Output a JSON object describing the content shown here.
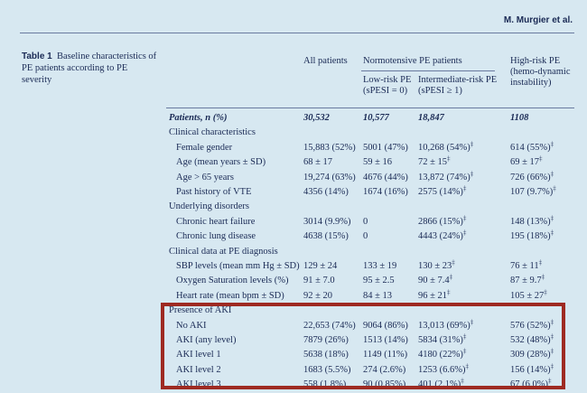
{
  "author": "M. Murgier et al.",
  "caption": {
    "label": "Table 1",
    "text": "Baseline characteristics of PE patients according to PE severity"
  },
  "headers": {
    "all": "All patients",
    "normotensive": "Normotensive PE patients",
    "low": "Low-risk PE (sPESI = 0)",
    "intermediate": "Intermediate-risk PE (sPESI ≥ 1)",
    "high": "High-risk PE (hemo-dynamic instability)"
  },
  "rows": [
    {
      "label": "Patients, n (%)",
      "all": "30,532",
      "low": "10,577",
      "int": "18,847",
      "high": "1108",
      "bold": true
    },
    {
      "label": "Clinical characteristics",
      "section": true
    },
    {
      "label": "Female gender",
      "all": "15,883 (52%)",
      "low": "5001 (47%)",
      "int": "10,268 (54%)",
      "int_sup": "‡",
      "high": "614 (55%)",
      "high_sup": "‡"
    },
    {
      "label": "Age (mean years ± SD)",
      "all": "68 ± 17",
      "low": "59 ± 16",
      "int": "72 ± 15",
      "int_sup": "‡",
      "high": "69 ± 17",
      "high_sup": "‡"
    },
    {
      "label": "Age > 65 years",
      "all": "19,274 (63%)",
      "low": "4676 (44%)",
      "int": "13,872 (74%)",
      "int_sup": "‡",
      "high": "726 (66%)",
      "high_sup": "‡"
    },
    {
      "label": "Past history of VTE",
      "all": "4356 (14%)",
      "low": "1674 (16%)",
      "int": "2575 (14%)",
      "int_sup": "‡",
      "high": "107 (9.7%)",
      "high_sup": "‡"
    },
    {
      "label": "Underlying disorders",
      "section": true
    },
    {
      "label": "Chronic heart failure",
      "all": "3014 (9.9%)",
      "low": "0",
      "int": "2866 (15%)",
      "int_sup": "‡",
      "high": "148 (13%)",
      "high_sup": "‡"
    },
    {
      "label": "Chronic lung disease",
      "all": "4638 (15%)",
      "low": "0",
      "int": "4443 (24%)",
      "int_sup": "‡",
      "high": "195 (18%)",
      "high_sup": "‡"
    },
    {
      "label": "Clinical data at PE diagnosis",
      "section": true
    },
    {
      "label": "SBP levels (mean mm Hg ± SD)",
      "all": "129 ± 24",
      "low": "133 ± 19",
      "int": "130 ± 23",
      "int_sup": "‡",
      "high": "76 ± 11",
      "high_sup": "‡"
    },
    {
      "label": "Oxygen Saturation levels (%)",
      "all": "91 ± 7.0",
      "low": "95 ± 2.5",
      "int": "90 ± 7.4",
      "int_sup": "‡",
      "high": "87 ± 9.7",
      "high_sup": "‡"
    },
    {
      "label": "Heart rate (mean bpm ± SD)",
      "all": "92 ± 20",
      "low": "84 ± 13",
      "int": "96 ± 21",
      "int_sup": "‡",
      "high": "105 ± 27",
      "high_sup": "‡"
    },
    {
      "label": "Presence of AKI",
      "section": true
    },
    {
      "label": "No AKI",
      "all": "22,653 (74%)",
      "low": "9064 (86%)",
      "int": "13,013 (69%)",
      "int_sup": "‡",
      "high": "576 (52%)",
      "high_sup": "‡"
    },
    {
      "label": "AKI (any level)",
      "all": "7879 (26%)",
      "low": "1513 (14%)",
      "int": "5834 (31%)",
      "int_sup": "‡",
      "high": "532 (48%)",
      "high_sup": "‡"
    },
    {
      "label": "AKI level 1",
      "all": "5638 (18%)",
      "low": "1149 (11%)",
      "int": "4180 (22%)",
      "int_sup": "‡",
      "high": "309 (28%)",
      "high_sup": "‡"
    },
    {
      "label": "AKI level 2",
      "all": "1683 (5.5%)",
      "low": "274 (2.6%)",
      "int": "1253 (6.6%)",
      "int_sup": "‡",
      "high": "156 (14%)",
      "high_sup": "‡"
    },
    {
      "label": "AKI level 3",
      "all": "558 (1.8%)",
      "low": "90 (0.85%)",
      "int": "401 (2.1%)",
      "int_sup": "‡",
      "high": "67 (6.0%)",
      "high_sup": "‡"
    }
  ],
  "colors": {
    "background": "#d7e8f1",
    "text": "#1a2a55",
    "highlight_box": "#9e2a22"
  }
}
